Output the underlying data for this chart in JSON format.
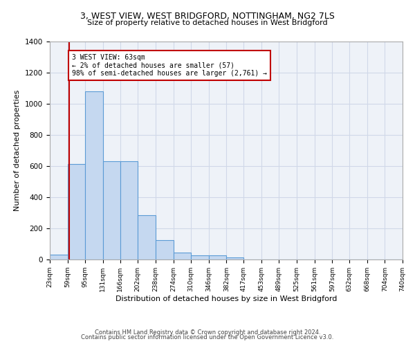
{
  "title1": "3, WEST VIEW, WEST BRIDGFORD, NOTTINGHAM, NG2 7LS",
  "title2": "Size of property relative to detached houses in West Bridgford",
  "xlabel": "Distribution of detached houses by size in West Bridgford",
  "ylabel": "Number of detached properties",
  "bar_color": "#c5d8f0",
  "bar_edge_color": "#5b9bd5",
  "grid_color": "#d0d8e8",
  "background_color": "#eef2f8",
  "property_line_x": 63,
  "property_line_color": "#c00000",
  "annotation_text": "3 WEST VIEW: 63sqm\n← 2% of detached houses are smaller (57)\n98% of semi-detached houses are larger (2,761) →",
  "annotation_box_color": "#c00000",
  "bin_edges": [
    23,
    59,
    95,
    131,
    166,
    202,
    238,
    274,
    310,
    346,
    382,
    417,
    453,
    489,
    525,
    561,
    597,
    632,
    668,
    704,
    740
  ],
  "bar_heights": [
    30,
    615,
    1080,
    630,
    630,
    285,
    125,
    45,
    25,
    25,
    15,
    0,
    0,
    0,
    0,
    0,
    0,
    0,
    0,
    0
  ],
  "ylim": [
    0,
    1400
  ],
  "yticks": [
    0,
    200,
    400,
    600,
    800,
    1000,
    1200,
    1400
  ],
  "footnote1": "Contains HM Land Registry data © Crown copyright and database right 2024.",
  "footnote2": "Contains public sector information licensed under the Open Government Licence v3.0."
}
